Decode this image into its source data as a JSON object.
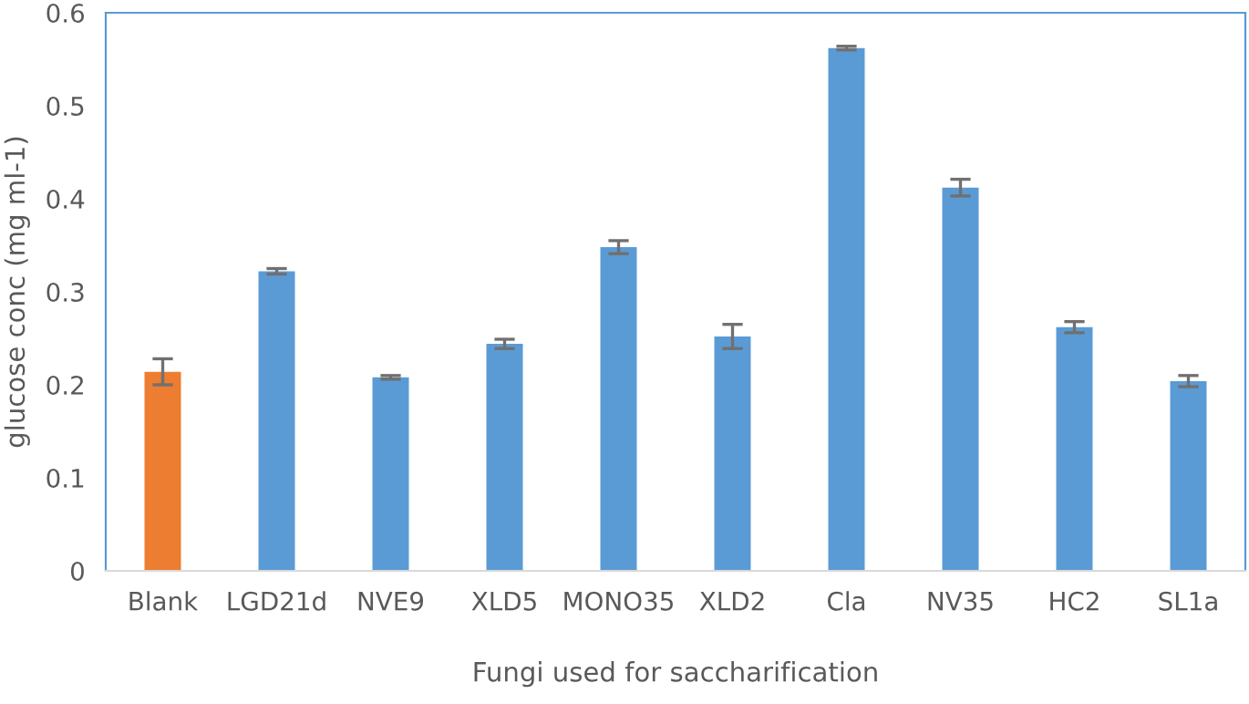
{
  "chart_data": {
    "type": "bar",
    "xlabel": "Fungi used for saccharification",
    "ylabel": "glucose conc (mg ml-1)",
    "categories": [
      "Blank",
      "LGD21d",
      "NVE9",
      "XLD5",
      "MONO35",
      "XLD2",
      "Cla",
      "NV35",
      "HC2",
      "SL1a"
    ],
    "values": [
      0.214,
      0.322,
      0.208,
      0.244,
      0.348,
      0.252,
      0.562,
      0.412,
      0.262,
      0.204
    ],
    "errors": [
      0.014,
      0.003,
      0.002,
      0.005,
      0.007,
      0.013,
      0.002,
      0.009,
      0.006,
      0.006
    ],
    "colors": [
      "#ed7d31",
      "#5b9bd5",
      "#5b9bd5",
      "#5b9bd5",
      "#5b9bd5",
      "#5b9bd5",
      "#5b9bd5",
      "#5b9bd5",
      "#5b9bd5",
      "#5b9bd5"
    ],
    "ylim": [
      0,
      0.6
    ],
    "yticks": [
      0,
      0.1,
      0.2,
      0.3,
      0.4,
      0.5,
      0.6
    ],
    "grid": false,
    "legend": false
  }
}
